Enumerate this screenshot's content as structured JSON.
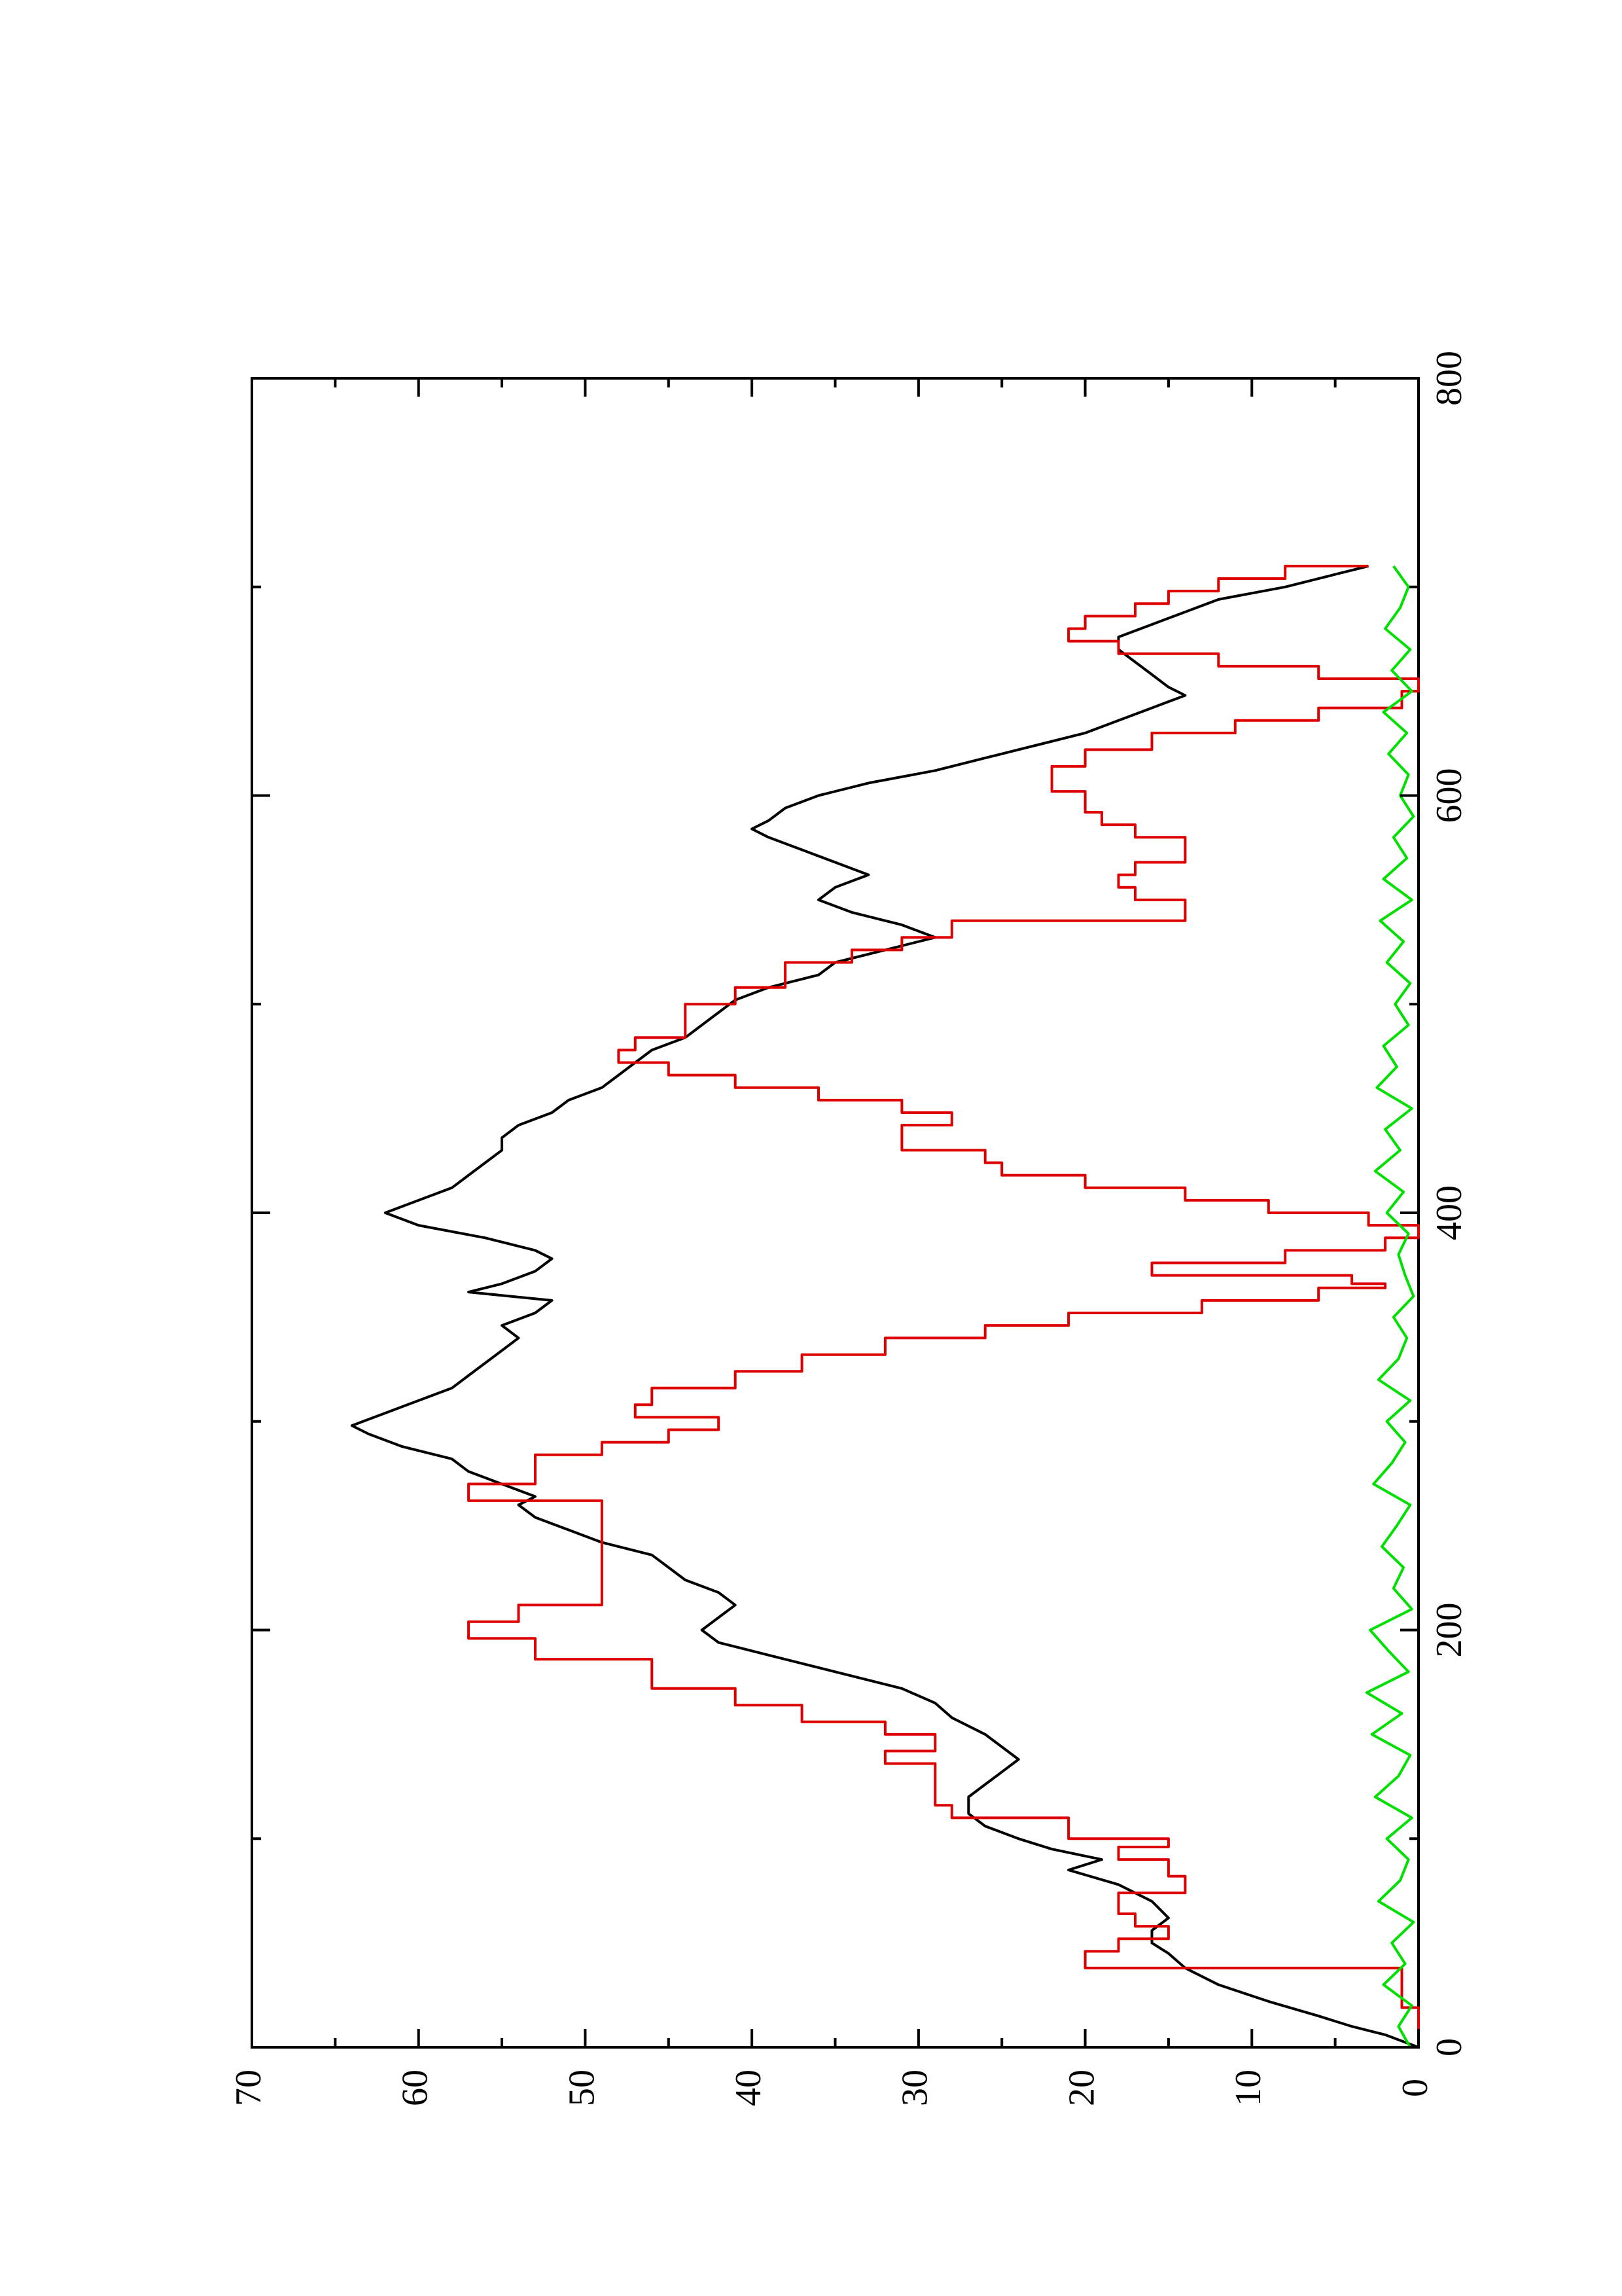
{
  "chart_data": {
    "type": "line",
    "orientation": "rotated-90-ccw",
    "title": "",
    "xlabel": "",
    "ylabel": "",
    "xlim": [
      0,
      800
    ],
    "ylim": [
      0,
      70
    ],
    "x_ticks": [
      0,
      200,
      400,
      600,
      800
    ],
    "x_minor_ticks": [
      100,
      300,
      500,
      700
    ],
    "y_ticks": [
      0,
      10,
      20,
      30,
      40,
      50,
      60,
      70
    ],
    "y_minor_ticks": [
      5,
      15,
      25,
      35,
      45,
      55,
      65
    ],
    "grid": false,
    "legend": "none",
    "series": [
      {
        "color": "#000000",
        "interpolation": "linear",
        "points": [
          [
            0,
            0
          ],
          [
            6,
            2
          ],
          [
            10,
            4
          ],
          [
            15,
            6
          ],
          [
            22,
            9
          ],
          [
            30,
            12
          ],
          [
            38,
            14
          ],
          [
            45,
            15
          ],
          [
            50,
            16
          ],
          [
            56,
            16
          ],
          [
            62,
            15
          ],
          [
            70,
            16
          ],
          [
            78,
            18
          ],
          [
            85,
            21
          ],
          [
            90,
            19
          ],
          [
            95,
            22
          ],
          [
            100,
            24
          ],
          [
            106,
            26
          ],
          [
            112,
            27
          ],
          [
            120,
            27
          ],
          [
            126,
            26
          ],
          [
            132,
            25
          ],
          [
            138,
            24
          ],
          [
            144,
            25
          ],
          [
            150,
            26
          ],
          [
            158,
            28
          ],
          [
            165,
            29
          ],
          [
            172,
            31
          ],
          [
            180,
            35
          ],
          [
            188,
            39
          ],
          [
            194,
            42
          ],
          [
            200,
            43
          ],
          [
            206,
            42
          ],
          [
            212,
            41
          ],
          [
            218,
            42
          ],
          [
            224,
            44
          ],
          [
            230,
            45
          ],
          [
            236,
            46
          ],
          [
            242,
            49
          ],
          [
            248,
            51
          ],
          [
            254,
            53
          ],
          [
            260,
            54
          ],
          [
            264,
            53
          ],
          [
            270,
            55
          ],
          [
            276,
            57
          ],
          [
            282,
            58
          ],
          [
            288,
            61
          ],
          [
            294,
            63
          ],
          [
            298,
            64
          ],
          [
            304,
            62
          ],
          [
            310,
            60
          ],
          [
            316,
            58
          ],
          [
            322,
            57
          ],
          [
            328,
            56
          ],
          [
            334,
            55
          ],
          [
            340,
            54
          ],
          [
            346,
            55
          ],
          [
            352,
            53
          ],
          [
            358,
            52
          ],
          [
            362,
            57
          ],
          [
            366,
            55
          ],
          [
            372,
            53
          ],
          [
            378,
            52
          ],
          [
            382,
            53
          ],
          [
            388,
            56
          ],
          [
            394,
            60
          ],
          [
            400,
            62
          ],
          [
            406,
            60
          ],
          [
            412,
            58
          ],
          [
            418,
            57
          ],
          [
            424,
            56
          ],
          [
            430,
            55
          ],
          [
            436,
            55
          ],
          [
            442,
            54
          ],
          [
            448,
            52
          ],
          [
            454,
            51
          ],
          [
            460,
            49
          ],
          [
            466,
            48
          ],
          [
            472,
            47
          ],
          [
            478,
            46
          ],
          [
            484,
            44
          ],
          [
            490,
            43
          ],
          [
            496,
            42
          ],
          [
            502,
            41
          ],
          [
            508,
            39
          ],
          [
            514,
            36
          ],
          [
            520,
            35
          ],
          [
            526,
            32
          ],
          [
            532,
            29
          ],
          [
            538,
            31
          ],
          [
            544,
            34
          ],
          [
            550,
            36
          ],
          [
            556,
            35
          ],
          [
            562,
            33
          ],
          [
            568,
            35
          ],
          [
            574,
            37
          ],
          [
            580,
            39
          ],
          [
            584,
            40
          ],
          [
            588,
            39
          ],
          [
            594,
            38
          ],
          [
            600,
            36
          ],
          [
            606,
            33
          ],
          [
            612,
            29
          ],
          [
            618,
            26
          ],
          [
            624,
            23
          ],
          [
            630,
            20
          ],
          [
            636,
            18
          ],
          [
            642,
            16
          ],
          [
            648,
            14
          ],
          [
            652,
            15
          ],
          [
            658,
            16
          ],
          [
            664,
            17
          ],
          [
            670,
            18
          ],
          [
            676,
            18
          ],
          [
            682,
            16
          ],
          [
            688,
            14
          ],
          [
            694,
            12
          ],
          [
            700,
            8
          ],
          [
            706,
            5
          ],
          [
            710,
            3
          ]
        ]
      },
      {
        "color": "#dd0000",
        "interpolation": "step",
        "points": [
          [
            0,
            0
          ],
          [
            19,
            1
          ],
          [
            38,
            20
          ],
          [
            46,
            18
          ],
          [
            52,
            15
          ],
          [
            58,
            17
          ],
          [
            64,
            18
          ],
          [
            74,
            14
          ],
          [
            82,
            15
          ],
          [
            90,
            18
          ],
          [
            96,
            15
          ],
          [
            100,
            21
          ],
          [
            110,
            28
          ],
          [
            116,
            29
          ],
          [
            130,
            29
          ],
          [
            136,
            32
          ],
          [
            142,
            29
          ],
          [
            150,
            32
          ],
          [
            156,
            37
          ],
          [
            164,
            41
          ],
          [
            172,
            46
          ],
          [
            186,
            53
          ],
          [
            196,
            57
          ],
          [
            204,
            54
          ],
          [
            212,
            49
          ],
          [
            252,
            49
          ],
          [
            262,
            57
          ],
          [
            270,
            53
          ],
          [
            276,
            53
          ],
          [
            284,
            49
          ],
          [
            290,
            45
          ],
          [
            296,
            42
          ],
          [
            302,
            47
          ],
          [
            308,
            46
          ],
          [
            316,
            41
          ],
          [
            324,
            37
          ],
          [
            332,
            32
          ],
          [
            340,
            26
          ],
          [
            346,
            21
          ],
          [
            352,
            13
          ],
          [
            358,
            6
          ],
          [
            364,
            2
          ],
          [
            366,
            4
          ],
          [
            370,
            16
          ],
          [
            376,
            8
          ],
          [
            382,
            2
          ],
          [
            388,
            0
          ],
          [
            394,
            3
          ],
          [
            400,
            9
          ],
          [
            406,
            14
          ],
          [
            412,
            20
          ],
          [
            418,
            25
          ],
          [
            424,
            26
          ],
          [
            430,
            31
          ],
          [
            436,
            31
          ],
          [
            442,
            28
          ],
          [
            448,
            31
          ],
          [
            454,
            36
          ],
          [
            460,
            41
          ],
          [
            466,
            45
          ],
          [
            472,
            48
          ],
          [
            478,
            47
          ],
          [
            484,
            44
          ],
          [
            492,
            44
          ],
          [
            500,
            41
          ],
          [
            508,
            38
          ],
          [
            514,
            38
          ],
          [
            520,
            34
          ],
          [
            526,
            31
          ],
          [
            532,
            28
          ],
          [
            540,
            14
          ],
          [
            544,
            14
          ],
          [
            550,
            17
          ],
          [
            556,
            18
          ],
          [
            562,
            17
          ],
          [
            568,
            14
          ],
          [
            574,
            14
          ],
          [
            580,
            17
          ],
          [
            586,
            19
          ],
          [
            592,
            20
          ],
          [
            598,
            20
          ],
          [
            602,
            22
          ],
          [
            608,
            22
          ],
          [
            614,
            20
          ],
          [
            622,
            16
          ],
          [
            630,
            11
          ],
          [
            636,
            6
          ],
          [
            642,
            1
          ],
          [
            650,
            0
          ],
          [
            656,
            6
          ],
          [
            662,
            12
          ],
          [
            668,
            18
          ],
          [
            674,
            21
          ],
          [
            680,
            20
          ],
          [
            686,
            17
          ],
          [
            692,
            15
          ],
          [
            698,
            12
          ],
          [
            704,
            8
          ],
          [
            710,
            3
          ]
        ]
      },
      {
        "color": "#00e000",
        "interpolation": "linear",
        "points": [
          [
            0,
            0.5
          ],
          [
            10,
            1.2
          ],
          [
            20,
            0.4
          ],
          [
            30,
            2.1
          ],
          [
            40,
            0.8
          ],
          [
            50,
            1.6
          ],
          [
            60,
            0.3
          ],
          [
            70,
            2.4
          ],
          [
            80,
            1.1
          ],
          [
            90,
            0.6
          ],
          [
            100,
            1.9
          ],
          [
            110,
            0.4
          ],
          [
            120,
            2.6
          ],
          [
            130,
            1.2
          ],
          [
            140,
            0.5
          ],
          [
            150,
            2.8
          ],
          [
            160,
            1.0
          ],
          [
            170,
            3.1
          ],
          [
            180,
            0.6
          ],
          [
            190,
            1.8
          ],
          [
            200,
            2.9
          ],
          [
            210,
            0.4
          ],
          [
            220,
            1.5
          ],
          [
            230,
            0.9
          ],
          [
            240,
            2.2
          ],
          [
            250,
            1.3
          ],
          [
            260,
            0.5
          ],
          [
            270,
            2.7
          ],
          [
            280,
            1.6
          ],
          [
            290,
            0.8
          ],
          [
            300,
            1.9
          ],
          [
            310,
            0.5
          ],
          [
            320,
            2.4
          ],
          [
            330,
            1.2
          ],
          [
            340,
            0.7
          ],
          [
            350,
            1.5
          ],
          [
            360,
            0.3
          ],
          [
            370,
            0.8
          ],
          [
            380,
            1.2
          ],
          [
            390,
            0.6
          ],
          [
            400,
            1.9
          ],
          [
            410,
            0.9
          ],
          [
            420,
            2.6
          ],
          [
            430,
            1.1
          ],
          [
            440,
            2.0
          ],
          [
            450,
            0.4
          ],
          [
            460,
            2.5
          ],
          [
            470,
            1.3
          ],
          [
            480,
            2.1
          ],
          [
            490,
            0.6
          ],
          [
            500,
            1.4
          ],
          [
            510,
            0.5
          ],
          [
            520,
            1.9
          ],
          [
            530,
            0.9
          ],
          [
            540,
            2.3
          ],
          [
            550,
            0.4
          ],
          [
            560,
            2.1
          ],
          [
            570,
            0.7
          ],
          [
            580,
            1.5
          ],
          [
            590,
            0.3
          ],
          [
            600,
            1.1
          ],
          [
            610,
            0.6
          ],
          [
            620,
            1.8
          ],
          [
            630,
            0.7
          ],
          [
            640,
            2.1
          ],
          [
            650,
            0.4
          ],
          [
            660,
            1.6
          ],
          [
            670,
            0.5
          ],
          [
            680,
            2.0
          ],
          [
            690,
            1.1
          ],
          [
            700,
            0.6
          ],
          [
            710,
            1.5
          ]
        ]
      }
    ]
  }
}
